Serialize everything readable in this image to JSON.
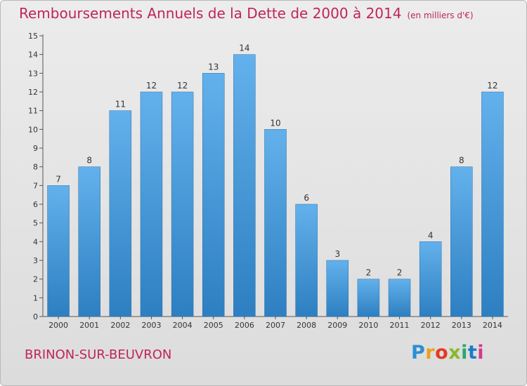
{
  "header": {
    "title": "Remboursements Annuels de la Dette de 2000 à 2014",
    "unit": "(en milliers d'€)"
  },
  "footer": {
    "commune": "BRINON-SUR-BEUVRON",
    "logo": "Proxiti"
  },
  "colors": {
    "accent": "#c0245c",
    "bar_light": "#63b1ec",
    "bar_dark": "#2d7fc1"
  },
  "chart_data": {
    "type": "bar",
    "title": "Remboursements Annuels de la Dette de 2000 à 2014",
    "subtitle": "(en milliers d'€)",
    "categories": [
      "2000",
      "2001",
      "2002",
      "2003",
      "2004",
      "2005",
      "2006",
      "2007",
      "2008",
      "2009",
      "2010",
      "2011",
      "2012",
      "2013",
      "2014"
    ],
    "values": [
      7,
      8,
      11,
      12,
      12,
      13,
      14,
      10,
      6,
      3,
      2,
      2,
      4,
      8,
      12
    ],
    "yticks": [
      0,
      1,
      2,
      3,
      4,
      5,
      6,
      7,
      8,
      9,
      10,
      11,
      12,
      13,
      14,
      15
    ],
    "ylim": [
      0,
      15
    ],
    "grid": false,
    "legend": "none"
  }
}
